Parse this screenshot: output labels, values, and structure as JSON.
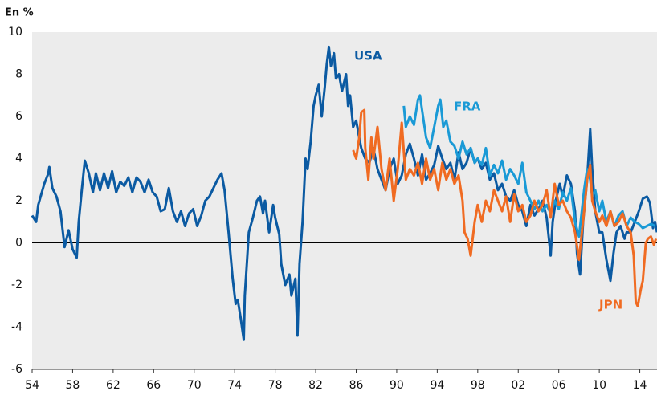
{
  "chart_data": {
    "type": "line",
    "title": "En %",
    "xlim": [
      1954,
      2015.7
    ],
    "xticks": [
      {
        "value": 1954,
        "label": "54"
      },
      {
        "value": 1958,
        "label": "58"
      },
      {
        "value": 1962,
        "label": "62"
      },
      {
        "value": 1966,
        "label": "66"
      },
      {
        "value": 1970,
        "label": "70"
      },
      {
        "value": 1974,
        "label": "74"
      },
      {
        "value": 1978,
        "label": "78"
      },
      {
        "value": 1982,
        "label": "82"
      },
      {
        "value": 1986,
        "label": "86"
      },
      {
        "value": 1990,
        "label": "90"
      },
      {
        "value": 1994,
        "label": "94"
      },
      {
        "value": 1998,
        "label": "98"
      },
      {
        "value": 2002,
        "label": "02"
      },
      {
        "value": 2006,
        "label": "06"
      },
      {
        "value": 2010,
        "label": "10"
      },
      {
        "value": 2014,
        "label": "14"
      }
    ],
    "ylim": [
      -6,
      10
    ],
    "yticks": [
      -6,
      -4,
      -2,
      0,
      2,
      4,
      6,
      8,
      10
    ],
    "grid": false,
    "series": [
      {
        "name": "USA",
        "color": "#0b5aa2",
        "x": [
          1954.0,
          1954.4,
          1954.6,
          1955.2,
          1955.6,
          1955.7,
          1956.0,
          1956.4,
          1956.8,
          1957.2,
          1957.6,
          1958.0,
          1958.4,
          1958.6,
          1958.9,
          1959.2,
          1959.6,
          1960.0,
          1960.3,
          1960.7,
          1961.1,
          1961.5,
          1961.9,
          1962.3,
          1962.7,
          1963.1,
          1963.5,
          1963.9,
          1964.3,
          1964.7,
          1965.1,
          1965.5,
          1965.9,
          1966.3,
          1966.7,
          1967.1,
          1967.5,
          1967.9,
          1968.3,
          1968.7,
          1969.1,
          1969.5,
          1969.9,
          1970.3,
          1970.7,
          1971.1,
          1971.5,
          1971.9,
          1972.3,
          1972.7,
          1973.0,
          1973.4,
          1973.8,
          1974.1,
          1974.3,
          1974.6,
          1974.9,
          1975.0,
          1975.4,
          1975.8,
          1976.2,
          1976.5,
          1976.8,
          1977.0,
          1977.4,
          1977.8,
          1978.0,
          1978.4,
          1978.6,
          1979.0,
          1979.4,
          1979.6,
          1980.0,
          1980.2,
          1980.4,
          1980.7,
          1981.0,
          1981.2,
          1981.5,
          1981.8,
          1982.0,
          1982.3,
          1982.6,
          1982.9,
          1983.1,
          1983.3,
          1983.5,
          1983.8,
          1984.0,
          1984.3,
          1984.6,
          1985.0,
          1985.2,
          1985.4,
          1985.7,
          1986.0,
          1986.3,
          1986.5,
          1986.9,
          1987.3,
          1987.7,
          1988.1,
          1988.5,
          1988.9,
          1989.3,
          1989.7,
          1990.1,
          1990.5,
          1990.9,
          1991.3,
          1991.7,
          1992.1,
          1992.5,
          1992.9,
          1993.3,
          1993.7,
          1994.1,
          1994.5,
          1994.9,
          1995.3,
          1995.7,
          1996.1,
          1996.5,
          1996.9,
          1997.3,
          1997.7,
          1998.0,
          1998.4,
          1998.8,
          1999.2,
          1999.6,
          2000.0,
          2000.4,
          2000.8,
          2001.2,
          2001.6,
          2002.0,
          2002.4,
          2002.8,
          2003.2,
          2003.6,
          2004.0,
          2004.4,
          2004.8,
          2005.2,
          2005.4,
          2005.7,
          2006.1,
          2006.4,
          2006.8,
          2007.2,
          2007.6,
          2007.8,
          2008.1,
          2008.4,
          2008.8,
          2009.1,
          2009.3,
          2009.6,
          2010.0,
          2010.3,
          2010.7,
          2011.1,
          2011.4,
          2011.7,
          2012.1,
          2012.5,
          2012.7,
          2013.1,
          2013.5,
          2013.9,
          2014.3,
          2014.7,
          2015.0,
          2015.3,
          2015.5,
          2015.7
        ],
        "values": [
          1.3,
          1.0,
          1.8,
          2.8,
          3.3,
          3.6,
          2.6,
          2.2,
          1.5,
          -0.2,
          0.6,
          -0.3,
          -0.7,
          1.0,
          2.5,
          3.9,
          3.3,
          2.4,
          3.3,
          2.5,
          3.3,
          2.6,
          3.4,
          2.4,
          2.9,
          2.7,
          3.1,
          2.4,
          3.1,
          2.9,
          2.4,
          3.0,
          2.4,
          2.2,
          1.5,
          1.6,
          2.6,
          1.5,
          1.0,
          1.5,
          0.8,
          1.4,
          1.6,
          0.8,
          1.3,
          2.0,
          2.2,
          2.6,
          3.0,
          3.3,
          2.5,
          0.5,
          -1.7,
          -2.9,
          -2.7,
          -3.6,
          -4.6,
          -2.5,
          0.5,
          1.2,
          2.0,
          2.2,
          1.4,
          2.0,
          0.5,
          1.8,
          1.2,
          0.4,
          -1.0,
          -2.0,
          -1.5,
          -2.5,
          -1.7,
          -4.4,
          -1.0,
          1.0,
          4.0,
          3.5,
          4.8,
          6.5,
          7.0,
          7.5,
          6.0,
          7.4,
          8.5,
          9.3,
          8.4,
          9.0,
          7.8,
          8.0,
          7.2,
          8.0,
          6.5,
          7.0,
          5.5,
          5.8,
          5.0,
          4.5,
          4.0,
          3.8,
          4.5,
          3.5,
          3.0,
          2.5,
          3.5,
          4.0,
          2.8,
          3.2,
          4.2,
          4.7,
          4.0,
          3.2,
          4.2,
          3.0,
          3.3,
          3.7,
          4.6,
          4.0,
          3.5,
          3.8,
          3.0,
          4.3,
          3.5,
          3.8,
          4.5,
          3.8,
          4.0,
          3.5,
          3.8,
          3.0,
          3.3,
          2.5,
          2.8,
          2.2,
          2.0,
          2.5,
          1.8,
          1.5,
          0.8,
          1.8,
          1.3,
          1.6,
          2.0,
          1.2,
          -0.6,
          1.0,
          2.0,
          2.8,
          2.2,
          3.2,
          2.8,
          1.5,
          -0.5,
          -1.5,
          1.0,
          3.0,
          5.4,
          3.5,
          1.5,
          0.5,
          0.5,
          -0.8,
          -1.8,
          -0.5,
          0.5,
          0.8,
          0.2,
          0.5,
          0.5,
          1.0,
          1.5,
          2.1,
          2.2,
          1.9,
          0.7,
          1.0,
          0.5
        ]
      },
      {
        "name": "FRA",
        "color": "#1a9ad6",
        "x": [
          1990.7,
          1990.9,
          1991.3,
          1991.7,
          1992.1,
          1992.3,
          1992.5,
          1992.9,
          1993.3,
          1993.7,
          1994.1,
          1994.3,
          1994.6,
          1994.9,
          1995.3,
          1995.7,
          1996.1,
          1996.5,
          1996.9,
          1997.3,
          1997.7,
          1998.0,
          1998.4,
          1998.8,
          1999.2,
          1999.6,
          2000.0,
          2000.4,
          2000.8,
          2001.2,
          2001.6,
          2002.0,
          2002.4,
          2002.8,
          2003.2,
          2003.6,
          2004.0,
          2004.4,
          2004.8,
          2005.2,
          2005.6,
          2006.0,
          2006.4,
          2006.8,
          2007.2,
          2007.6,
          2008.0,
          2008.5,
          2008.8,
          2009.1,
          2009.3,
          2009.6,
          2010.0,
          2010.3,
          2010.7,
          2011.1,
          2011.5,
          2011.9,
          2012.3,
          2012.7,
          2013.1,
          2013.5,
          2013.9,
          2014.3,
          2014.7,
          2015.1,
          2015.5
        ],
        "values": [
          6.5,
          5.5,
          6.0,
          5.6,
          6.8,
          7.0,
          6.3,
          5.0,
          4.5,
          5.5,
          6.5,
          6.8,
          5.5,
          5.8,
          4.8,
          4.6,
          4.0,
          4.8,
          4.2,
          4.5,
          3.8,
          4.0,
          3.7,
          4.5,
          3.2,
          3.7,
          3.3,
          3.9,
          3.0,
          3.5,
          3.2,
          2.8,
          3.8,
          2.4,
          2.0,
          1.6,
          2.0,
          1.5,
          1.8,
          1.4,
          2.0,
          1.6,
          2.4,
          2.0,
          2.6,
          1.0,
          0.3,
          2.5,
          3.5,
          3.0,
          2.2,
          2.5,
          1.5,
          2.0,
          1.0,
          1.5,
          0.8,
          1.3,
          1.5,
          0.8,
          1.2,
          1.0,
          0.9,
          0.7,
          0.8,
          0.9,
          0.8
        ]
      },
      {
        "name": "JPN",
        "color": "#f06b22",
        "x": [
          1985.7,
          1986.0,
          1986.3,
          1986.5,
          1986.8,
          1986.9,
          1987.2,
          1987.5,
          1987.7,
          1988.1,
          1988.5,
          1988.9,
          1989.3,
          1989.7,
          1990.1,
          1990.5,
          1990.9,
          1991.3,
          1991.7,
          1992.1,
          1992.5,
          1992.9,
          1993.3,
          1993.7,
          1994.1,
          1994.5,
          1994.9,
          1995.3,
          1995.7,
          1996.1,
          1996.5,
          1996.7,
          1997.0,
          1997.3,
          1997.7,
          1998.0,
          1998.4,
          1998.8,
          1999.2,
          1999.6,
          2000.0,
          2000.4,
          2000.8,
          2001.2,
          2001.6,
          2002.0,
          2002.4,
          2002.8,
          2003.2,
          2003.6,
          2004.0,
          2004.4,
          2004.8,
          2005.2,
          2005.6,
          2006.0,
          2006.4,
          2006.8,
          2007.2,
          2007.6,
          2008.0,
          2008.5,
          2008.8,
          2009.1,
          2009.3,
          2009.6,
          2010.0,
          2010.3,
          2010.7,
          2011.1,
          2011.5,
          2011.9,
          2012.3,
          2012.7,
          2013.1,
          2013.4,
          2013.6,
          2013.8,
          2014.1,
          2014.3,
          2014.6,
          2014.8,
          2015.1,
          2015.4,
          2015.6
        ],
        "values": [
          4.4,
          4.0,
          5.0,
          6.2,
          6.3,
          4.5,
          3.0,
          5.0,
          4.0,
          5.5,
          3.5,
          2.5,
          4.0,
          2.0,
          3.5,
          5.7,
          3.0,
          3.5,
          3.2,
          3.8,
          2.8,
          4.0,
          3.0,
          3.5,
          2.5,
          3.8,
          3.0,
          3.5,
          2.8,
          3.2,
          2.0,
          0.5,
          0.2,
          -0.6,
          1.0,
          1.8,
          1.0,
          2.0,
          1.5,
          2.5,
          2.0,
          1.5,
          2.2,
          1.0,
          2.3,
          1.5,
          1.8,
          1.0,
          1.3,
          2.0,
          1.5,
          1.8,
          2.5,
          1.2,
          2.8,
          1.8,
          2.0,
          1.5,
          1.2,
          0.5,
          -0.8,
          1.5,
          3.0,
          3.7,
          2.0,
          1.5,
          1.0,
          1.3,
          0.8,
          1.5,
          0.8,
          1.0,
          1.4,
          0.8,
          0.5,
          -0.6,
          -2.8,
          -3.0,
          -2.2,
          -1.8,
          0.0,
          0.2,
          0.3,
          -0.1,
          0.2
        ]
      }
    ]
  }
}
